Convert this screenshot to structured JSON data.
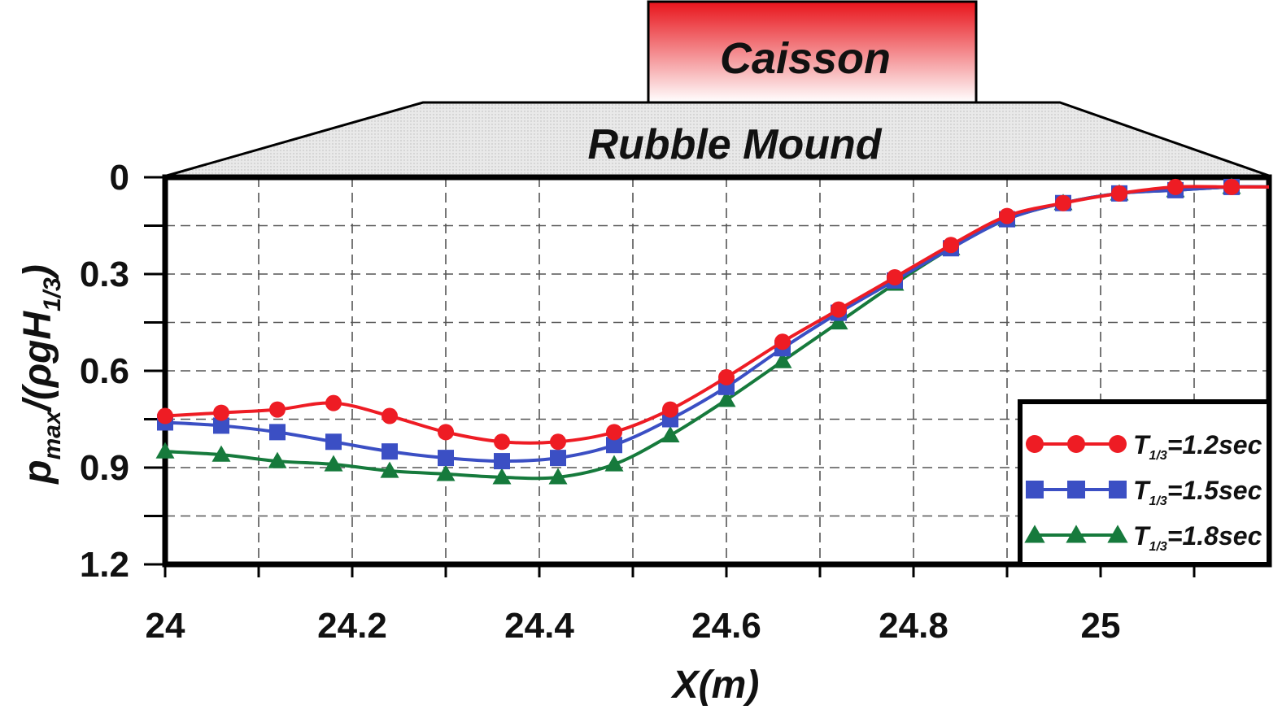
{
  "diagram": {
    "caisson_label": "Caisson",
    "mound_label": "Rubble Mound",
    "caisson_color": "#e8141b",
    "mound_fill": "#e6e6e6"
  },
  "chart_data": {
    "type": "line",
    "title": "",
    "xlabel": "X(m)",
    "ylabel": {
      "base": "p",
      "base_sub": "max",
      "mid": "/(ρgH",
      "mid_sub": "1/3",
      "tail": ")"
    },
    "xlim": [
      24,
      25.18
    ],
    "ylim": [
      0,
      1.2
    ],
    "y_inverted": true,
    "grid": true,
    "x_ticks": [
      24,
      24.2,
      24.4,
      24.6,
      24.8,
      25
    ],
    "x_tick_labels": [
      "24",
      "24.2",
      "24.4",
      "24.6",
      "24.8",
      "25"
    ],
    "y_ticks": [
      0,
      0.3,
      0.6,
      0.9,
      1.2
    ],
    "y_tick_labels": [
      "0",
      "0.3",
      "0.6",
      "0.9",
      "1.2"
    ],
    "legend_position": "bottom-right",
    "x": [
      24.0,
      24.06,
      24.12,
      24.18,
      24.24,
      24.3,
      24.36,
      24.42,
      24.48,
      24.54,
      24.6,
      24.66,
      24.72,
      24.78,
      24.84,
      24.9,
      24.96,
      25.02,
      25.08,
      25.14
    ],
    "series": [
      {
        "name": "T1/3=1.2sec",
        "label_main": "T",
        "label_sub": "1/3",
        "label_tail": "=1.2sec",
        "color": "#ee1c24",
        "marker": "circle",
        "values": [
          0.74,
          0.73,
          0.72,
          0.7,
          0.74,
          0.79,
          0.82,
          0.82,
          0.79,
          0.72,
          0.62,
          0.51,
          0.41,
          0.31,
          0.21,
          0.12,
          0.08,
          0.05,
          0.03,
          0.03
        ]
      },
      {
        "name": "T1/3=1.5sec",
        "label_main": "T",
        "label_sub": "1/3",
        "label_tail": "=1.5sec",
        "color": "#3b4fc4",
        "marker": "square",
        "values": [
          0.76,
          0.77,
          0.79,
          0.82,
          0.85,
          0.87,
          0.88,
          0.87,
          0.83,
          0.75,
          0.65,
          0.53,
          0.42,
          0.32,
          0.22,
          0.13,
          0.08,
          0.05,
          0.04,
          0.03
        ]
      },
      {
        "name": "T1/3=1.8sec",
        "label_main": "T",
        "label_sub": "1/3",
        "label_tail": "=1.8sec",
        "color": "#167a3c",
        "marker": "triangle",
        "values": [
          0.85,
          0.86,
          0.88,
          0.89,
          0.91,
          0.92,
          0.93,
          0.93,
          0.89,
          0.8,
          0.69,
          0.57,
          0.45,
          0.33,
          0.22,
          0.13,
          0.08,
          0.05,
          0.04,
          0.03
        ]
      }
    ]
  }
}
